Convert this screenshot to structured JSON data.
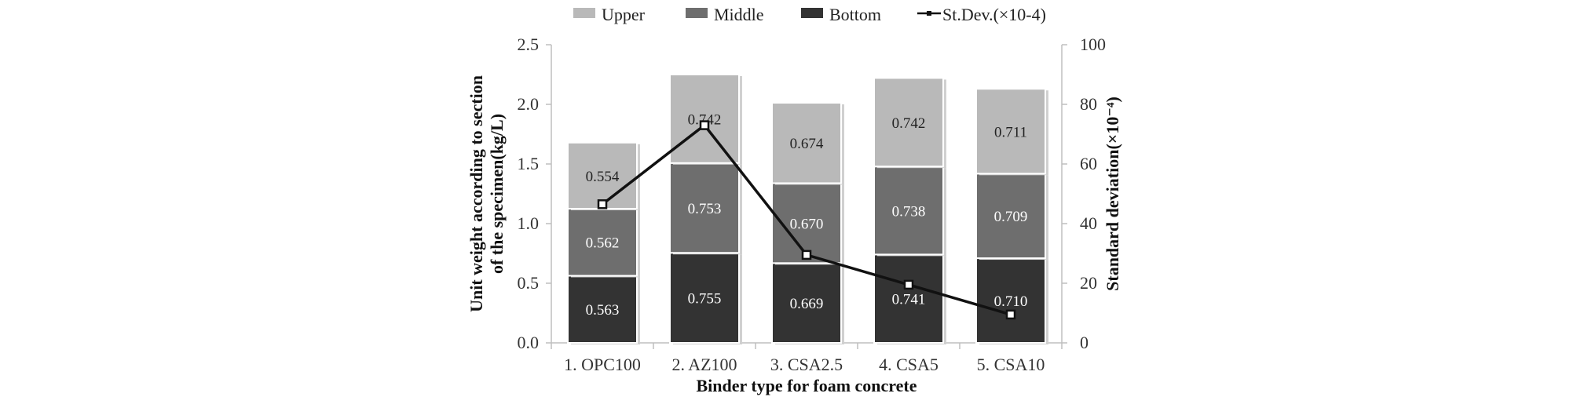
{
  "chart_data": {
    "type": "bar",
    "stacked": true,
    "categories": [
      "1. OPC100",
      "2. AZ100",
      "3. CSA2.5",
      "4. CSA5",
      "5. CSA10"
    ],
    "series": [
      {
        "name": "Bottom",
        "values": [
          0.563,
          0.755,
          0.669,
          0.741,
          0.71
        ],
        "color": "#333333",
        "label_color": "#ffffff"
      },
      {
        "name": "Middle",
        "values": [
          0.562,
          0.753,
          0.67,
          0.738,
          0.709
        ],
        "color": "#6e6e6e",
        "label_color": "#ffffff"
      },
      {
        "name": "Upper",
        "values": [
          0.554,
          0.742,
          0.674,
          0.742,
          0.711
        ],
        "color": "#b9b9b9",
        "label_color": "#222222"
      }
    ],
    "line_series": {
      "name": "St.Dev.(×10-4)",
      "axis": "right",
      "values": [
        46.5,
        73,
        29.5,
        19.5,
        9.5
      ],
      "color": "#111111"
    },
    "legend_order": [
      "Upper",
      "Middle",
      "Bottom",
      "St.Dev.(×10-4)"
    ],
    "legend_position": "top",
    "xlabel": "Binder type for foam concrete",
    "ylabel_lines": [
      "Unit weight according to section",
      "of the specimen(kg/L)"
    ],
    "y2label": "Standard deviation(×10⁻⁴)",
    "ylim": [
      0,
      2.5
    ],
    "yticks": [
      "0.0",
      "0.5",
      "1.0",
      "1.5",
      "2.0",
      "2.5"
    ],
    "y2lim": [
      0,
      100
    ],
    "y2ticks": [
      "0",
      "20",
      "40",
      "60",
      "80",
      "100"
    ],
    "grid": false
  }
}
